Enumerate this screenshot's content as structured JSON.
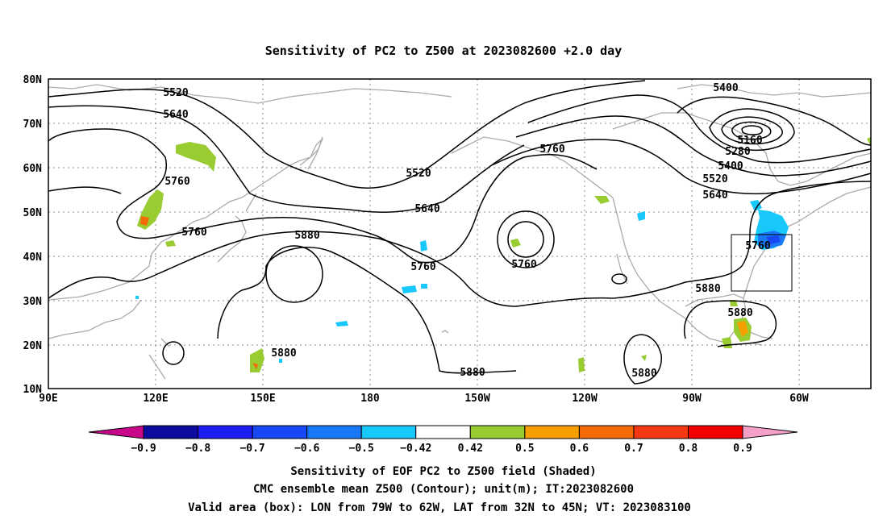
{
  "title": "Sensitivity of PC2 to Z500 at 2023082600 +2.0 day",
  "map": {
    "lon_labels": [
      "90E",
      "120E",
      "150E",
      "180",
      "150W",
      "120W",
      "90W",
      "60W"
    ],
    "lat_labels": [
      "80N",
      "70N",
      "60N",
      "50N",
      "40N",
      "30N",
      "20N",
      "10N"
    ],
    "grid": true,
    "contour_labels": [
      "5520",
      "5640",
      "5760",
      "5760",
      "5880",
      "5880",
      "5520",
      "5640",
      "5760",
      "5760",
      "5760",
      "5880",
      "5880",
      "5880",
      "5400",
      "5160",
      "5280",
      "5400",
      "5520",
      "5640",
      "5760",
      "5880",
      "5880"
    ],
    "valid_box": {
      "lon_from": "79W",
      "lon_to": "62W",
      "lat_from": "32N",
      "lat_to": "45N"
    }
  },
  "colorbar": {
    "ticks": [
      "−0.9",
      "−0.8",
      "−0.7",
      "−0.6",
      "−0.5",
      "−0.42",
      "0.42",
      "0.5",
      "0.6",
      "0.7",
      "0.8",
      "0.9"
    ],
    "colors": [
      "#0b0b9e",
      "#1c1cf4",
      "#1848f5",
      "#1878f5",
      "#18c8fb",
      "#ffffff",
      "#98cc30",
      "#f5a000",
      "#f56a08",
      "#f53812",
      "#f50000"
    ],
    "under_color": "#c8068a",
    "over_color": "#f5a0c8"
  },
  "captions": {
    "line1": "Sensitivity of EOF PC2 to Z500 field (Shaded)",
    "line2": "CMC ensemble mean Z500 (Contour); unit(m); IT:2023082600",
    "line3": "Valid area (box): LON from 79W to 62W, LAT from 32N to 45N; VT: 2023083100"
  }
}
